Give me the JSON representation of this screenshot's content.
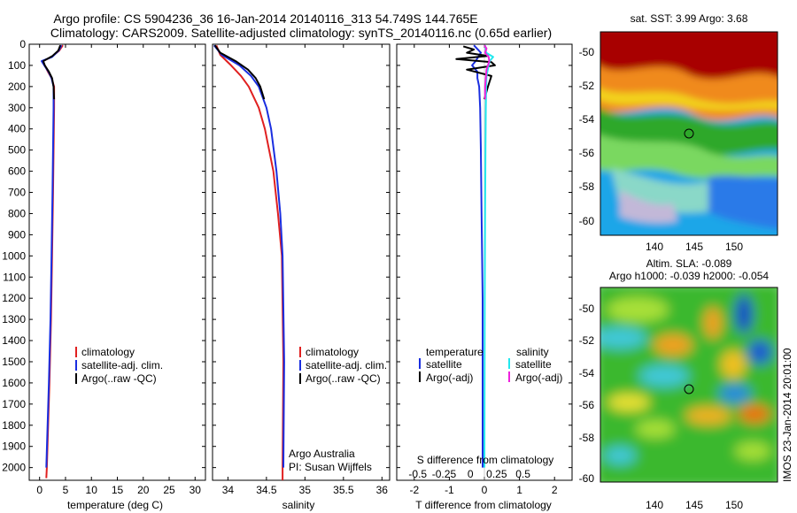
{
  "header": {
    "title_line1": "Argo profile: CS 5904236_36 16-Jan-2014 20140116_313 54.749S 144.765E",
    "title_line2": "Climatology: CARS2009. Satellite-adjusted climatology: synTS_20140116.nc (0.65d earlier)"
  },
  "colors": {
    "climatology": "#e02020",
    "satellite_adj": "#1a2ee0",
    "argo": "#000000",
    "sat_salinity": "#22e8ee",
    "argo_adj_salinity": "#ee22dd"
  },
  "chart_data": [
    {
      "type": "line",
      "panel": "temperature",
      "xlabel": "temperature (deg C)",
      "ylabel": "",
      "xlim": [
        -2,
        32
      ],
      "ylim": [
        2060,
        0
      ],
      "xticks": [
        0,
        5,
        10,
        15,
        20,
        25,
        30
      ],
      "yticks": [
        0,
        100,
        200,
        300,
        400,
        500,
        600,
        700,
        800,
        900,
        1000,
        1100,
        1200,
        1300,
        1400,
        1500,
        1600,
        1700,
        1800,
        1900,
        2000
      ],
      "legend": [
        "climatology",
        "satellite-adj. clim.",
        "Argo(..raw -QC)"
      ],
      "series": [
        {
          "name": "climatology",
          "color": "#e02020",
          "depth": [
            5,
            30,
            60,
            80,
            100,
            130,
            160,
            200,
            300,
            500,
            700,
            1000,
            1300,
            1600,
            2000,
            2050
          ],
          "values": [
            4.5,
            3.8,
            2.3,
            0.6,
            1.0,
            1.6,
            2.3,
            2.8,
            2.8,
            2.7,
            2.6,
            2.4,
            2.2,
            1.9,
            1.4,
            1.3
          ]
        },
        {
          "name": "satellite-adj. clim.",
          "color": "#1a2ee0",
          "depth": [
            5,
            30,
            60,
            80,
            100,
            130,
            160,
            200,
            300,
            500,
            700,
            1000,
            1300,
            1600,
            2000
          ],
          "values": [
            4.2,
            3.7,
            2.4,
            0.4,
            0.9,
            1.7,
            2.3,
            2.7,
            2.7,
            2.6,
            2.5,
            2.3,
            2.1,
            1.8,
            1.3
          ]
        },
        {
          "name": "Argo(..raw -QC)",
          "color": "#000000",
          "depth": [
            5,
            30,
            55,
            80,
            100,
            130,
            160,
            200,
            260
          ],
          "values": [
            4.0,
            3.6,
            2.5,
            0.7,
            1.0,
            1.8,
            2.4,
            2.7,
            2.8
          ]
        }
      ]
    },
    {
      "type": "line",
      "panel": "salinity",
      "xlabel": "salinity",
      "ylabel": "",
      "xlim": [
        33.8,
        36.1
      ],
      "ylim": [
        2060,
        0
      ],
      "xticks": [
        34,
        34.5,
        35,
        35.5,
        36
      ],
      "legend": [
        "climatology",
        "satellite-adj. clim.",
        "Argo(..raw -QC)"
      ],
      "annotation": [
        "Argo Australia",
        "PI: Susan Wijffels"
      ],
      "series": [
        {
          "name": "climatology",
          "color": "#e02020",
          "depth": [
            5,
            50,
            100,
            150,
            200,
            300,
            400,
            600,
            800,
            1000,
            1500,
            2000,
            2060
          ],
          "values": [
            33.85,
            33.9,
            34.04,
            34.17,
            34.27,
            34.4,
            34.48,
            34.59,
            34.65,
            34.7,
            34.72,
            34.71,
            34.71
          ]
        },
        {
          "name": "satellite-adj. clim.",
          "color": "#1a2ee0",
          "depth": [
            5,
            50,
            100,
            150,
            200,
            300,
            400,
            600,
            800,
            1000,
            1500,
            2000
          ],
          "values": [
            33.82,
            33.92,
            34.15,
            34.3,
            34.4,
            34.5,
            34.56,
            34.63,
            34.68,
            34.71,
            34.73,
            34.72
          ]
        },
        {
          "name": "Argo(..raw -QC)",
          "color": "#000000",
          "depth": [
            5,
            40,
            80,
            120,
            160,
            200,
            260
          ],
          "values": [
            33.83,
            33.9,
            34.1,
            34.26,
            34.36,
            34.42,
            34.47
          ]
        }
      ]
    },
    {
      "type": "line",
      "panel": "difference",
      "xlabel": "T difference from climatology",
      "xlabel_top": "S difference from climatology",
      "xlim": [
        -2.5,
        2.5
      ],
      "ylim": [
        2060,
        0
      ],
      "xticks": [
        -2,
        -1,
        0,
        1,
        2
      ],
      "xticks_top": [
        "-0.5",
        "-0.25",
        "0",
        "0.25",
        "0.5"
      ],
      "legend_headers": [
        "temperature",
        "salinity"
      ],
      "legend": [
        "satellite",
        "Argo(-adj)",
        "satellite",
        "Argo(-adj)"
      ],
      "series": [
        {
          "name": "satellite",
          "group": "temperature",
          "color": "#1a2ee0",
          "depth": [
            5,
            40,
            80,
            100,
            130,
            160,
            200,
            300,
            500,
            800,
            1200,
            1600,
            2000
          ],
          "values": [
            -0.3,
            -0.1,
            -0.25,
            -0.35,
            -0.2,
            -0.2,
            -0.15,
            -0.12,
            -0.1,
            -0.08,
            -0.05,
            -0.05,
            -0.05
          ]
        },
        {
          "name": "Argo(-adj)",
          "group": "temperature",
          "color": "#000000",
          "depth": [
            10,
            25,
            40,
            55,
            70,
            85,
            100,
            120,
            150,
            200,
            260
          ],
          "values": [
            -0.6,
            -0.3,
            -0.5,
            0.1,
            -0.8,
            0.2,
            0.3,
            -0.5,
            0.2,
            0.1,
            0.0
          ]
        },
        {
          "name": "satellite",
          "group": "salinity",
          "color": "#22e8ee",
          "depth": [
            5,
            40,
            60,
            80,
            100,
            150,
            200,
            300,
            500,
            800,
            1200,
            2000
          ],
          "values": [
            0.02,
            0.05,
            0.25,
            0.15,
            0.12,
            0.06,
            0.05,
            0.04,
            0.03,
            0.02,
            0.01,
            0.0
          ]
        },
        {
          "name": "Argo(-adj)",
          "group": "salinity",
          "color": "#ee22dd",
          "depth": [
            5,
            20,
            40,
            60,
            80,
            100,
            120,
            160,
            200,
            260
          ],
          "values": [
            0.0,
            0.06,
            0.02,
            0.12,
            0.14,
            0.1,
            0.06,
            0.04,
            0.02,
            0.02
          ]
        }
      ]
    }
  ],
  "maps": [
    {
      "id": "sst",
      "title": "sat. SST: 3.99 Argo: 3.68",
      "yticks": [
        "-50",
        "-52",
        "-54",
        "-56",
        "-58",
        "-60"
      ],
      "xticks": [
        "140",
        "145",
        "150"
      ]
    },
    {
      "id": "sla",
      "title_line1": "Altim. SLA: -0.089",
      "title_line2": "Argo h1000: -0.039 h2000: -0.054",
      "yticks": [
        "-50",
        "-52",
        "-54",
        "-56",
        "-58",
        "-60"
      ],
      "xticks": [
        "140",
        "145",
        "150"
      ]
    }
  ],
  "footer": {
    "watermark": "IMOS 23-Jan-2014 20:01:00"
  }
}
